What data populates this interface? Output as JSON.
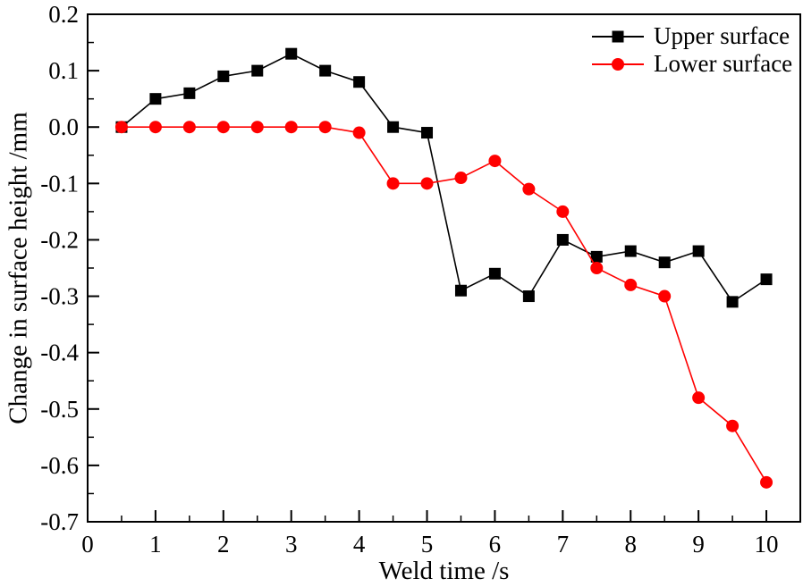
{
  "figure": {
    "background": "#ffffff",
    "axis_color": "#000000"
  },
  "chart_data": {
    "type": "line",
    "title": "",
    "xlabel": "Weld time /s",
    "ylabel": "Change in surface height /mm",
    "xlim": [
      0,
      10.5
    ],
    "ylim": [
      -0.7,
      0.2
    ],
    "grid": false,
    "legend_position": "top-right",
    "x_major_ticks": [
      0,
      1,
      2,
      3,
      4,
      5,
      6,
      7,
      8,
      9,
      10
    ],
    "x_tick_labels": [
      "0",
      "1",
      "2",
      "3",
      "4",
      "5",
      "6",
      "7",
      "8",
      "9",
      "10"
    ],
    "x_minor_ticks": [
      0.5,
      1.5,
      2.5,
      3.5,
      4.5,
      5.5,
      6.5,
      7.5,
      8.5,
      9.5
    ],
    "y_major_ticks": [
      0.2,
      0.1,
      0.0,
      -0.1,
      -0.2,
      -0.3,
      -0.4,
      -0.5,
      -0.6,
      -0.7
    ],
    "y_tick_labels": [
      "0.2",
      "0.1",
      "0.0",
      "-0.1",
      "-0.2",
      "-0.3",
      "-0.4",
      "-0.5",
      "-0.6",
      "-0.7"
    ],
    "y_minor_ticks": [
      0.15,
      0.05,
      -0.05,
      -0.15,
      -0.25,
      -0.35,
      -0.45,
      -0.55,
      -0.65
    ],
    "x": [
      0.5,
      1,
      1.5,
      2,
      2.5,
      3,
      3.5,
      4,
      4.5,
      5,
      5.5,
      6,
      6.5,
      7,
      7.5,
      8,
      8.5,
      9,
      9.5,
      10
    ],
    "series": [
      {
        "name": "Upper surface",
        "color": "#000000",
        "marker": "square",
        "values": [
          0.0,
          0.05,
          0.06,
          0.09,
          0.1,
          0.13,
          0.1,
          0.08,
          0.0,
          -0.01,
          -0.29,
          -0.26,
          -0.3,
          -0.2,
          -0.23,
          -0.22,
          -0.24,
          -0.22,
          -0.31,
          -0.27
        ]
      },
      {
        "name": "Lower surface",
        "color": "#ff0000",
        "marker": "circle",
        "values": [
          0.0,
          0.0,
          0.0,
          0.0,
          0.0,
          0.0,
          0.0,
          -0.01,
          -0.1,
          -0.1,
          -0.09,
          -0.06,
          -0.11,
          -0.15,
          -0.25,
          -0.28,
          -0.3,
          -0.48,
          -0.53,
          -0.63
        ]
      }
    ]
  }
}
